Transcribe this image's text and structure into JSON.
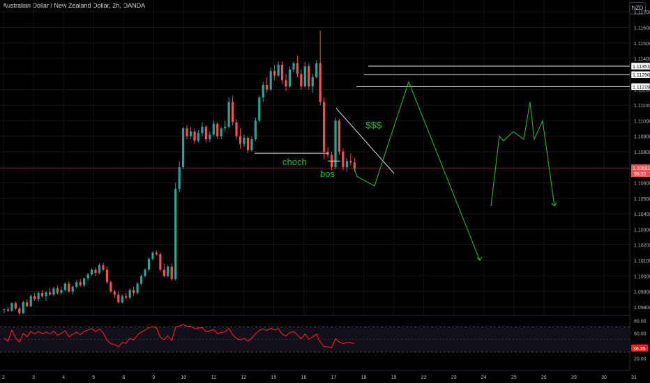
{
  "header": {
    "title": "Australian Dollar / New Zealand Dollar, 2h, OANDA",
    "currency_button": "NZD"
  },
  "colors": {
    "up": "#26a69a",
    "down": "#ef5350",
    "rsi": "#ff1e1e",
    "annotation": "#22c322",
    "price_line": "#ef5350",
    "axis_text": "#b2b5be"
  },
  "chart_data": {
    "type": "candlestick",
    "price_axis": {
      "ticks": [
        "1.11700",
        "1.11600",
        "1.11500",
        "1.11400",
        "1.11300",
        "1.11200",
        "1.11100",
        "1.11000",
        "1.10900",
        "1.10800",
        "1.10700",
        "1.10600",
        "1.10500",
        "1.10400",
        "1.10300",
        "1.10200",
        "1.10100",
        "1.10000",
        "1.09900",
        "1.09800"
      ]
    },
    "time_axis": {
      "ticks": [
        "2",
        "3",
        "4",
        "5",
        "8",
        "9",
        "10",
        "11",
        "12",
        "15",
        "16",
        "17",
        "18",
        "19",
        "22",
        "23",
        "24",
        "25",
        "26",
        "29",
        "30",
        "31"
      ]
    },
    "current_price": {
      "value": "1.10691",
      "countdown": "55:32"
    },
    "levels": [
      {
        "label": "1.11351",
        "price": 1.11351
      },
      {
        "label": "1.11296",
        "price": 1.11296
      },
      {
        "label": "1.11219",
        "price": 1.11219
      }
    ],
    "annotations": {
      "choch": "choch",
      "bos": "bos",
      "liquidity": "$$$"
    },
    "rsi": {
      "ticks": [
        "80.00",
        "60.00",
        "40.00",
        "20.00"
      ],
      "upper": 70,
      "lower": 30,
      "current": "36.35"
    },
    "candles": [
      [
        1.0978,
        1.0979,
        1.0976,
        1.09785
      ],
      [
        1.09785,
        1.098,
        1.0977,
        1.09775
      ],
      [
        1.09775,
        1.0983,
        1.0977,
        1.09825
      ],
      [
        1.09825,
        1.09835,
        1.0978,
        1.0979
      ],
      [
        1.0979,
        1.098,
        1.0975,
        1.0976
      ],
      [
        1.0976,
        1.0984,
        1.09755,
        1.0983
      ],
      [
        1.0983,
        1.0985,
        1.098,
        1.09805
      ],
      [
        1.09805,
        1.0988,
        1.098,
        1.0987
      ],
      [
        1.0987,
        1.0989,
        1.0984,
        1.0985
      ],
      [
        1.0985,
        1.099,
        1.09835,
        1.0989
      ],
      [
        1.0989,
        1.0991,
        1.0986,
        1.0987
      ],
      [
        1.0987,
        1.099,
        1.0984,
        1.09895
      ],
      [
        1.09895,
        1.09925,
        1.0987,
        1.0988
      ],
      [
        1.0988,
        1.0993,
        1.0987,
        1.0992
      ],
      [
        1.0992,
        1.09935,
        1.0988,
        1.0989
      ],
      [
        1.0989,
        1.0993,
        1.0988,
        1.0991
      ],
      [
        1.0991,
        1.0996,
        1.099,
        1.0995
      ],
      [
        1.0995,
        1.09965,
        1.0989,
        1.099
      ],
      [
        1.099,
        1.0994,
        1.0988,
        1.0993
      ],
      [
        1.0993,
        1.09975,
        1.0992,
        1.0996
      ],
      [
        1.0996,
        1.0998,
        1.0993,
        1.0994
      ],
      [
        1.0994,
        1.0999,
        1.0993,
        1.09985
      ],
      [
        1.09985,
        1.1002,
        1.0997,
        1.1001
      ],
      [
        1.1001,
        1.1005,
        1.1,
        1.1004
      ],
      [
        1.1004,
        1.10055,
        1.1,
        1.1002
      ],
      [
        1.1002,
        1.1008,
        1.1001,
        1.1007
      ],
      [
        1.1007,
        1.10085,
        1.1003,
        1.1004
      ],
      [
        1.1004,
        1.1006,
        1.0995,
        1.0996
      ],
      [
        1.0996,
        1.0997,
        1.0989,
        1.099
      ],
      [
        1.099,
        1.0991,
        1.0986,
        1.0988
      ],
      [
        1.0988,
        1.099,
        1.0982,
        1.0983
      ],
      [
        1.0983,
        1.0988,
        1.0982,
        1.0987
      ],
      [
        1.0987,
        1.0989,
        1.0985,
        1.0986
      ],
      [
        1.0986,
        1.0992,
        1.0985,
        1.0991
      ],
      [
        1.0991,
        1.0993,
        1.0987,
        1.0989
      ],
      [
        1.0989,
        1.0996,
        1.0988,
        1.0995
      ],
      [
        1.0995,
        1.1001,
        1.0994,
        1.1
      ],
      [
        1.1,
        1.1005,
        1.0999,
        1.1004
      ],
      [
        1.1004,
        1.1012,
        1.1003,
        1.1011
      ],
      [
        1.1011,
        1.1016,
        1.101,
        1.1015
      ],
      [
        1.1015,
        1.10165,
        1.1013,
        1.1014
      ],
      [
        1.1014,
        1.1015,
        1.1003,
        1.1004
      ],
      [
        1.1004,
        1.1008,
        1.0999,
        1.1
      ],
      [
        1.1,
        1.1007,
        1.0999,
        1.1006
      ],
      [
        1.1006,
        1.1008,
        1.0997,
        1.0998
      ],
      [
        1.0998,
        1.106,
        1.0997,
        1.1056
      ],
      [
        1.1056,
        1.1074,
        1.1054,
        1.107
      ],
      [
        1.107,
        1.1096,
        1.1069,
        1.1095
      ],
      [
        1.1095,
        1.1097,
        1.1088,
        1.109
      ],
      [
        1.109,
        1.1096,
        1.1088,
        1.1093
      ],
      [
        1.1093,
        1.1095,
        1.1085,
        1.1087
      ],
      [
        1.1087,
        1.1094,
        1.1086,
        1.1092
      ],
      [
        1.1092,
        1.1099,
        1.109,
        1.1096
      ],
      [
        1.1096,
        1.1097,
        1.1086,
        1.1088
      ],
      [
        1.1088,
        1.1093,
        1.1086,
        1.1091
      ],
      [
        1.1091,
        1.11,
        1.109,
        1.1098
      ],
      [
        1.1098,
        1.1099,
        1.1088,
        1.109
      ],
      [
        1.109,
        1.1096,
        1.1088,
        1.1095
      ],
      [
        1.1095,
        1.11,
        1.1093,
        1.1096
      ],
      [
        1.1096,
        1.1115,
        1.1095,
        1.1112
      ],
      [
        1.1112,
        1.1116,
        1.1097,
        1.1099
      ],
      [
        1.1099,
        1.1101,
        1.1088,
        1.109
      ],
      [
        1.109,
        1.1095,
        1.1082,
        1.1085
      ],
      [
        1.1085,
        1.1091,
        1.1083,
        1.1089
      ],
      [
        1.1089,
        1.109,
        1.1079,
        1.1081
      ],
      [
        1.1081,
        1.109,
        1.108,
        1.1088
      ],
      [
        1.1088,
        1.1102,
        1.1087,
        1.11
      ],
      [
        1.11,
        1.1116,
        1.1099,
        1.1115
      ],
      [
        1.1115,
        1.1125,
        1.1112,
        1.1123
      ],
      [
        1.1123,
        1.1128,
        1.1118,
        1.112
      ],
      [
        1.112,
        1.1134,
        1.1119,
        1.1132
      ],
      [
        1.1132,
        1.1136,
        1.1126,
        1.1129
      ],
      [
        1.1129,
        1.1138,
        1.1128,
        1.1136
      ],
      [
        1.1136,
        1.1138,
        1.1124,
        1.1126
      ],
      [
        1.1126,
        1.113,
        1.1119,
        1.1122
      ],
      [
        1.1122,
        1.1135,
        1.1121,
        1.1133
      ],
      [
        1.1133,
        1.1138,
        1.1131,
        1.1137
      ],
      [
        1.1137,
        1.1142,
        1.1128,
        1.113
      ],
      [
        1.113,
        1.1133,
        1.112,
        1.1122
      ],
      [
        1.1122,
        1.1138,
        1.1121,
        1.1135
      ],
      [
        1.1135,
        1.1137,
        1.112,
        1.1122
      ],
      [
        1.1122,
        1.113,
        1.1118,
        1.1128
      ],
      [
        1.1128,
        1.1139,
        1.1127,
        1.1137
      ],
      [
        1.1137,
        1.1158,
        1.111,
        1.1112
      ],
      [
        1.1112,
        1.1115,
        1.1075,
        1.108
      ],
      [
        1.108,
        1.1083,
        1.1076,
        1.1078
      ],
      [
        1.1078,
        1.108,
        1.1068,
        1.107
      ],
      [
        1.107,
        1.1102,
        1.1069,
        1.11
      ],
      [
        1.11,
        1.1101,
        1.1078,
        1.108
      ],
      [
        1.108,
        1.1082,
        1.1068,
        1.107
      ],
      [
        1.107,
        1.1076,
        1.1067,
        1.1074
      ],
      [
        1.1074,
        1.1079,
        1.1071,
        1.1073
      ],
      [
        1.1073,
        1.1076,
        1.1067,
        1.10691
      ]
    ],
    "projection_path": [
      [
        1.10691,
        1.1064
      ],
      [
        1.1064,
        1.1058
      ],
      [
        1.1058,
        1.1125
      ],
      [
        1.1125,
        1.101
      ]
    ],
    "projection_2": [
      1.1045,
      1.109,
      1.1087,
      1.1093,
      1.1088,
      1.1112,
      1.1088,
      1.11,
      1.1045
    ]
  }
}
